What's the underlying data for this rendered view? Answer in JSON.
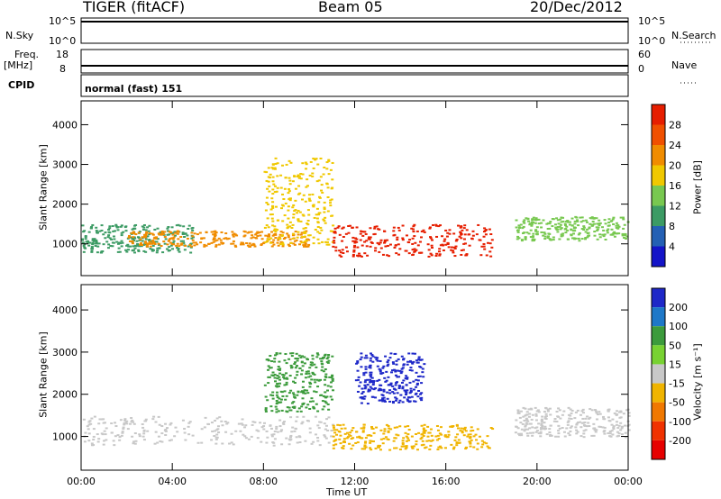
{
  "header": {
    "title": "TIGER (fitACF)",
    "beam": "Beam 05",
    "date": "20/Dec/2012"
  },
  "strips": {
    "nsky_label": "N.Sky",
    "nsky_ticks": [
      "10^5",
      "10^0"
    ],
    "nsearch_label": "N.Search",
    "freq_label": "Freq.",
    "freq_unit": "[MHz]",
    "freq_ticks": [
      "18",
      "8"
    ],
    "nave_label": "Nave",
    "nave_ticks": [
      "60",
      "0"
    ],
    "cpid_label": "CPID",
    "cpid_value": "normal (fast) 151"
  },
  "chart_data": [
    {
      "type": "heatmap",
      "title": "",
      "xlabel": "Time UT",
      "ylabel": "Slant Range [km]",
      "x_ticks": [
        "00:00",
        "04:00",
        "08:00",
        "12:00",
        "16:00",
        "20:00",
        "00:00"
      ],
      "x_range": [
        0,
        24
      ],
      "y_ticks": [
        1000,
        2000,
        3000,
        4000
      ],
      "y_range": [
        200,
        4600
      ],
      "colorbar": {
        "label": "Power [dB]",
        "ticks": [
          4,
          8,
          12,
          16,
          20,
          24,
          28
        ],
        "colors": [
          "#1414c8",
          "#2460b4",
          "#3c9b64",
          "#78c850",
          "#f0c800",
          "#f08c00",
          "#f05000",
          "#e61e00"
        ]
      },
      "regions": [
        {
          "t": [
            0,
            5
          ],
          "range": [
            800,
            1500
          ],
          "level": 8
        },
        {
          "t": [
            2,
            10
          ],
          "range": [
            950,
            1350
          ],
          "level": 20
        },
        {
          "t": [
            8,
            11
          ],
          "range": [
            1000,
            3200
          ],
          "level": 16
        },
        {
          "t": [
            11,
            18
          ],
          "range": [
            700,
            1500
          ],
          "level": 28
        },
        {
          "t": [
            19,
            24
          ],
          "range": [
            1100,
            1700
          ],
          "level": 12
        }
      ]
    },
    {
      "type": "heatmap",
      "title": "",
      "xlabel": "Time UT",
      "ylabel": "Slant Range [km]",
      "x_ticks": [
        "00:00",
        "04:00",
        "08:00",
        "12:00",
        "16:00",
        "20:00",
        "00:00"
      ],
      "x_range": [
        0,
        24
      ],
      "y_ticks": [
        1000,
        2000,
        3000,
        4000
      ],
      "y_range": [
        200,
        4600
      ],
      "colorbar": {
        "label": "Velocity [m s⁻¹]",
        "ticks": [
          "200",
          "100",
          "50",
          "15",
          "-15",
          "-50",
          "-100",
          "-200"
        ],
        "colors": [
          "#1e28c8",
          "#1e78c8",
          "#3c9b3c",
          "#78d232",
          "#c8c8c8",
          "#f0b400",
          "#f07800",
          "#f03200",
          "#e60000"
        ]
      },
      "regions": [
        {
          "t": [
            0,
            11
          ],
          "range": [
            800,
            1500
          ],
          "velocity": 0
        },
        {
          "t": [
            8,
            11
          ],
          "range": [
            1600,
            3000
          ],
          "velocity": 50
        },
        {
          "t": [
            11,
            18
          ],
          "range": [
            700,
            1300
          ],
          "velocity": -50
        },
        {
          "t": [
            12,
            15
          ],
          "range": [
            1800,
            3000
          ],
          "velocity": 200
        },
        {
          "t": [
            19,
            24
          ],
          "range": [
            1000,
            1700
          ],
          "velocity": 0
        }
      ]
    }
  ]
}
